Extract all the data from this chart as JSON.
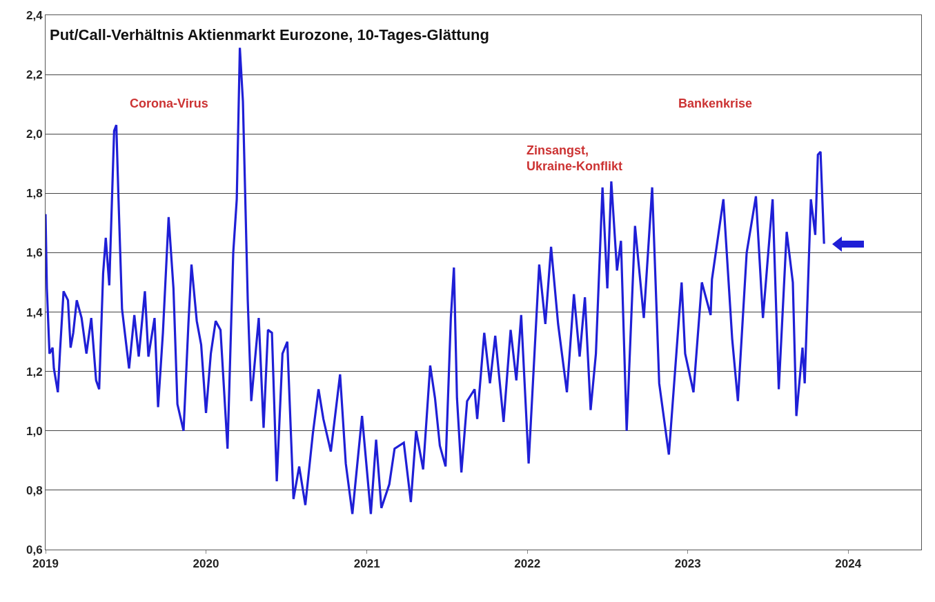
{
  "chart_data": {
    "type": "line",
    "title": "Put/Call-Verhältnis Aktienmarkt Eurozone, 10-Tages-Glättung",
    "annotations": [
      "Corona-Virus",
      "Zinsangst,\nUkraine-Konflikt",
      "Bankenkrise"
    ],
    "x": [
      "2019-01-01",
      "2019-01-04",
      "2019-01-10",
      "2019-01-17",
      "2019-01-20",
      "2019-01-29",
      "2019-02-03",
      "2019-02-11",
      "2019-02-21",
      "2019-02-27",
      "2019-03-05",
      "2019-03-13",
      "2019-03-24",
      "2019-04-04",
      "2019-04-15",
      "2019-04-26",
      "2019-05-03",
      "2019-05-12",
      "2019-05-18",
      "2019-05-26",
      "2019-06-06",
      "2019-06-11",
      "2019-06-16",
      "2019-06-24",
      "2019-07-10",
      "2019-07-22",
      "2019-08-01",
      "2019-08-15",
      "2019-08-23",
      "2019-09-06",
      "2019-09-14",
      "2019-09-25",
      "2019-10-08",
      "2019-10-19",
      "2019-10-28",
      "2019-11-11",
      "2019-11-22",
      "2019-11-29",
      "2019-12-11",
      "2019-12-21",
      "2020-01-01",
      "2020-01-12",
      "2020-01-23",
      "2020-02-03",
      "2020-02-19",
      "2020-03-03",
      "2020-03-11",
      "2020-03-18",
      "2020-03-25",
      "2020-04-05",
      "2020-04-13",
      "2020-04-30",
      "2020-05-11",
      "2020-05-21",
      "2020-05-30",
      "2020-06-10",
      "2020-06-23",
      "2020-07-04",
      "2020-07-18",
      "2020-07-31",
      "2020-08-14",
      "2020-08-31",
      "2020-09-13",
      "2020-09-24",
      "2020-10-11",
      "2020-11-01",
      "2020-11-14",
      "2020-11-29",
      "2020-12-21",
      "2021-01-10",
      "2021-01-22",
      "2021-02-03",
      "2021-02-21",
      "2021-03-05",
      "2021-03-26",
      "2021-04-11",
      "2021-04-23",
      "2021-05-09",
      "2021-05-25",
      "2021-06-05",
      "2021-06-16",
      "2021-06-29",
      "2021-07-11",
      "2021-07-18",
      "2021-07-25",
      "2021-08-04",
      "2021-08-17",
      "2021-09-03",
      "2021-09-09",
      "2021-09-25",
      "2021-10-08",
      "2021-10-20",
      "2021-11-08",
      "2021-11-24",
      "2021-12-07",
      "2021-12-18",
      "2022-01-04",
      "2022-01-28",
      "2022-02-11",
      "2022-02-24",
      "2022-03-12",
      "2022-04-01",
      "2022-04-17",
      "2022-04-30",
      "2022-05-12",
      "2022-05-25",
      "2022-06-06",
      "2022-06-21",
      "2022-07-02",
      "2022-07-11",
      "2022-07-24",
      "2022-08-02",
      "2022-08-15",
      "2022-09-03",
      "2022-09-23",
      "2022-10-12",
      "2022-10-28",
      "2022-11-19",
      "2022-11-30",
      "2022-12-18",
      "2022-12-26",
      "2023-01-14",
      "2023-02-02",
      "2023-02-22",
      "2023-02-25",
      "2023-03-23",
      "2023-04-12",
      "2023-04-25",
      "2023-05-15",
      "2023-06-05",
      "2023-06-21",
      "2023-07-13",
      "2023-07-27",
      "2023-08-14",
      "2023-08-28",
      "2023-09-05",
      "2023-09-19",
      "2023-09-24",
      "2023-10-08",
      "2023-10-18",
      "2023-10-24",
      "2023-10-30",
      "2023-11-07"
    ],
    "series": [
      {
        "color": "#1f1fd6",
        "values": [
          1.73,
          1.48,
          1.26,
          1.28,
          1.21,
          1.13,
          1.27,
          1.47,
          1.44,
          1.28,
          1.33,
          1.44,
          1.38,
          1.26,
          1.38,
          1.17,
          1.14,
          1.53,
          1.65,
          1.49,
          2.01,
          2.03,
          1.78,
          1.41,
          1.21,
          1.39,
          1.25,
          1.47,
          1.25,
          1.38,
          1.08,
          1.33,
          1.72,
          1.48,
          1.09,
          1.0,
          1.36,
          1.56,
          1.37,
          1.29,
          1.06,
          1.26,
          1.37,
          1.34,
          0.94,
          1.6,
          1.78,
          2.29,
          2.11,
          1.44,
          1.1,
          1.38,
          1.01,
          1.34,
          1.33,
          0.83,
          1.26,
          1.3,
          0.77,
          0.88,
          0.75,
          0.99,
          1.14,
          1.04,
          0.93,
          1.19,
          0.89,
          0.72,
          1.05,
          0.72,
          0.97,
          0.74,
          0.82,
          0.94,
          0.96,
          0.76,
          1.0,
          0.87,
          1.22,
          1.11,
          0.95,
          0.88,
          1.38,
          1.55,
          1.11,
          0.86,
          1.1,
          1.14,
          1.04,
          1.33,
          1.16,
          1.32,
          1.03,
          1.34,
          1.17,
          1.39,
          0.89,
          1.56,
          1.36,
          1.62,
          1.36,
          1.13,
          1.46,
          1.25,
          1.45,
          1.07,
          1.26,
          1.82,
          1.48,
          1.84,
          1.54,
          1.64,
          1.0,
          1.69,
          1.38,
          1.82,
          1.16,
          0.92,
          1.14,
          1.5,
          1.26,
          1.13,
          1.5,
          1.39,
          1.51,
          1.78,
          1.31,
          1.1,
          1.6,
          1.79,
          1.38,
          1.78,
          1.14,
          1.67,
          1.5,
          1.05,
          1.28,
          1.16,
          1.78,
          1.66,
          1.93,
          1.94,
          1.63
        ]
      }
    ],
    "xlim": [
      "2019-01-01",
      "2024-06-15"
    ],
    "xticks": [
      "2019",
      "2020",
      "2021",
      "2022",
      "2023",
      "2024"
    ],
    "ylim": [
      0.6,
      2.4
    ],
    "yticks": [
      {
        "value": 0.6,
        "label": "0,6"
      },
      {
        "value": 0.8,
        "label": "0,8"
      },
      {
        "value": 1.0,
        "label": "1,0"
      },
      {
        "value": 1.2,
        "label": "1,2"
      },
      {
        "value": 1.4,
        "label": "1,4"
      },
      {
        "value": 1.6,
        "label": "1,6"
      },
      {
        "value": 1.8,
        "label": "1,8"
      },
      {
        "value": 2.0,
        "label": "2,0"
      },
      {
        "value": 2.2,
        "label": "2,2"
      },
      {
        "value": 2.4,
        "label": "2,4"
      }
    ],
    "grid": "y",
    "marker": "none",
    "line_style": "solid"
  }
}
